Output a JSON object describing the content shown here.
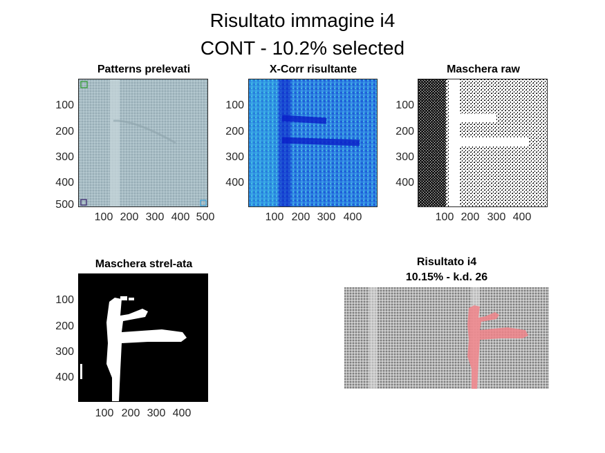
{
  "figure": {
    "title_line1": "Risultato immagine i4",
    "title_line2": "CONT - 10.2% selected"
  },
  "panels": {
    "patterns": {
      "title": "Patterns prelevati",
      "yticks": [
        "100",
        "200",
        "300",
        "400",
        "500"
      ],
      "xticks": [
        "100",
        "200",
        "300",
        "400",
        "500"
      ],
      "colors": {
        "fabric": "#a7bcc4",
        "seam": "#c6d5da",
        "pattern_a": "#2a9a2a",
        "pattern_b": "#4a3a7a",
        "pattern_c": "#3aa0d8"
      }
    },
    "xcorr": {
      "title": "X-Corr risultante",
      "yticks": [
        "100",
        "200",
        "300",
        "400"
      ],
      "xticks": [
        "100",
        "200",
        "300",
        "400"
      ],
      "colors": {
        "base": "#2a7de0",
        "high": "#3fe0e8",
        "low": "#0a1ec8"
      }
    },
    "mask_raw": {
      "title": "Maschera raw",
      "yticks": [
        "100",
        "200",
        "300",
        "400"
      ],
      "xticks": [
        "100",
        "200",
        "300",
        "400"
      ]
    },
    "mask_strel": {
      "title": "Maschera strel-ata",
      "yticks": [
        "100",
        "200",
        "300",
        "400"
      ],
      "xticks": [
        "100",
        "200",
        "300",
        "400"
      ]
    },
    "result": {
      "title_line1": "Risultato i4",
      "title_line2": "10.15% - k.d. 26",
      "colors": {
        "fabric": "#8e8e8e",
        "highlight": "#f0848a"
      }
    }
  }
}
